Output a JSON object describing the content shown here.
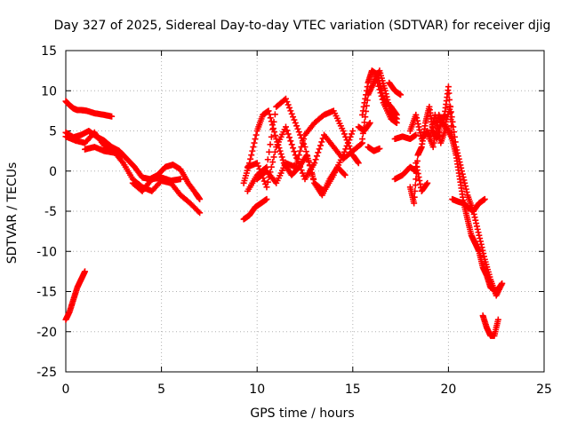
{
  "chart_data": {
    "type": "scatter",
    "title": "Day 327 of 2025, Sidereal Day-to-day VTEC variation (SDTVAR) for receiver djig",
    "xlabel": "GPS time / hours",
    "ylabel": "SDTVAR / TECUs",
    "xlim": [
      0,
      25
    ],
    "ylim": [
      -25,
      15
    ],
    "xticks": [
      0,
      5,
      10,
      15,
      20,
      25
    ],
    "yticks": [
      -25,
      -20,
      -15,
      -10,
      -5,
      0,
      5,
      10,
      15
    ],
    "grid": true,
    "marker": "+",
    "color": "#ff0000",
    "series": [
      {
        "x": [
          0.0,
          0.2,
          0.4,
          0.6,
          0.8,
          1.1,
          1.5,
          2.0,
          2.4
        ],
        "y": [
          8.7,
          8.2,
          7.8,
          7.6,
          7.6,
          7.5,
          7.2,
          7.0,
          6.8
        ]
      },
      {
        "x": [
          0.0,
          0.4,
          0.8,
          1.2,
          1.6,
          2.0,
          2.4,
          2.8,
          3.2,
          3.6,
          4.0,
          4.4,
          4.8,
          5.2,
          5.6,
          6.0,
          6.4,
          6.8,
          7.0
        ],
        "y": [
          4.8,
          4.2,
          4.5,
          5.0,
          4.3,
          3.8,
          3.0,
          2.5,
          1.5,
          0.5,
          -0.8,
          -1.0,
          -0.5,
          0.5,
          0.8,
          0.2,
          -1.5,
          -2.8,
          -3.5
        ]
      },
      {
        "x": [
          0.0,
          0.5,
          1.0,
          1.5,
          2.0,
          2.5,
          3.0,
          3.5,
          4.0,
          4.5,
          5.0,
          5.5,
          6.0,
          6.5,
          7.0
        ],
        "y": [
          4.3,
          3.8,
          3.5,
          4.8,
          3.2,
          2.5,
          1.0,
          -1.0,
          -2.0,
          -2.5,
          -1.2,
          -1.5,
          -3.0,
          -4.0,
          -5.2
        ]
      },
      {
        "x": [
          1.0,
          1.5,
          2.0,
          2.5,
          3.0
        ],
        "y": [
          2.7,
          3.0,
          2.5,
          2.3,
          2.0
        ]
      },
      {
        "x": [
          3.5,
          4.0,
          4.5,
          5.0,
          5.5,
          6.0
        ],
        "y": [
          -1.5,
          -2.5,
          -1.0,
          -0.8,
          -1.2,
          -1.0
        ]
      },
      {
        "x": [
          0.0,
          0.2,
          0.4,
          0.6,
          0.8,
          1.0
        ],
        "y": [
          -18.5,
          -17.5,
          -16.0,
          -14.5,
          -13.5,
          -12.5
        ]
      },
      {
        "x": [
          9.3,
          9.6,
          9.9,
          10.2,
          10.5
        ],
        "y": [
          -6.0,
          -5.5,
          -4.5,
          -4.0,
          -3.5
        ]
      },
      {
        "x": [
          9.3,
          9.6,
          10.0,
          10.3,
          10.6,
          11.0,
          11.4,
          11.8,
          12.2,
          12.6,
          13.0,
          13.4,
          13.8,
          14.2,
          14.6
        ],
        "y": [
          -1.5,
          1.0,
          5.0,
          7.0,
          7.5,
          4.0,
          1.0,
          -0.5,
          0.5,
          2.0,
          -1.5,
          -3.0,
          -1.0,
          0.5,
          -0.5
        ]
      },
      {
        "x": [
          9.5,
          10.0,
          10.5,
          11.0,
          11.5,
          12.0,
          12.5,
          13.0,
          13.5,
          14.0,
          14.5,
          15.0,
          15.5
        ],
        "y": [
          0.5,
          1.0,
          -2.0,
          3.0,
          5.5,
          2.0,
          -1.0,
          1.0,
          4.5,
          3.0,
          1.5,
          2.5,
          3.5
        ]
      },
      {
        "x": [
          9.5,
          10.0,
          10.5,
          11.0,
          11.5,
          12.0,
          12.5,
          13.0,
          13.5,
          14.0,
          14.5,
          15.0
        ],
        "y": [
          -2.5,
          -0.5,
          0.5,
          8.0,
          9.0,
          6.0,
          3.0,
          -1.5,
          -2.5,
          -0.5,
          2.0,
          5.0
        ]
      },
      {
        "x": [
          10.0,
          10.5,
          11.0,
          11.5,
          12.0,
          12.5,
          13.0,
          13.5,
          14.0,
          14.5,
          15.0,
          15.3
        ],
        "y": [
          -1.0,
          0.0,
          -1.5,
          1.0,
          0.5,
          4.5,
          6.0,
          7.0,
          7.5,
          5.0,
          2.0,
          1.0
        ]
      },
      {
        "x": [
          15.5,
          15.8,
          16.0,
          16.3,
          16.6,
          17.0,
          17.3
        ],
        "y": [
          7.0,
          11.0,
          12.5,
          12.0,
          9.0,
          8.0,
          7.0
        ]
      },
      {
        "x": [
          15.5,
          15.8,
          16.1,
          16.4,
          16.7,
          17.0,
          17.3
        ],
        "y": [
          4.0,
          9.5,
          11.0,
          12.5,
          10.0,
          7.0,
          6.5
        ]
      },
      {
        "x": [
          16.9,
          17.2,
          17.5
        ],
        "y": [
          11.0,
          10.0,
          9.5
        ]
      },
      {
        "x": [
          16.2,
          16.6,
          17.0,
          17.3
        ],
        "y": [
          11.8,
          8.5,
          6.5,
          6.0
        ]
      },
      {
        "x": [
          15.3,
          15.6,
          15.9
        ],
        "y": [
          5.5,
          5.0,
          6.0
        ]
      },
      {
        "x": [
          15.8,
          16.1,
          16.4
        ],
        "y": [
          3.0,
          2.5,
          2.8
        ]
      },
      {
        "x": [
          17.2,
          17.6,
          18.0,
          18.3
        ],
        "y": [
          -1.0,
          -0.5,
          0.5,
          0.0
        ]
      },
      {
        "x": [
          17.2,
          17.6,
          18.0,
          18.3
        ],
        "y": [
          4.0,
          4.3,
          4.0,
          4.5
        ]
      },
      {
        "x": [
          18.0,
          18.2,
          18.4,
          18.6,
          18.8,
          19.0,
          19.2,
          19.4,
          19.6,
          19.8,
          20.0,
          20.2,
          20.4,
          20.6,
          20.8,
          21.0,
          21.2,
          21.4,
          21.6,
          21.8,
          22.0,
          22.2,
          22.5,
          22.8
        ],
        "y": [
          -2.0,
          -4.0,
          2.0,
          3.0,
          6.0,
          8.0,
          5.0,
          4.0,
          6.0,
          7.0,
          10.5,
          4.0,
          2.0,
          -1.0,
          -4.0,
          -6.0,
          -8.0,
          -9.0,
          -10.0,
          -12.0,
          -13.0,
          -14.5,
          -15.0,
          -14.0
        ]
      },
      {
        "x": [
          18.0,
          18.3,
          18.6,
          18.9,
          19.2,
          19.5,
          19.8,
          20.1,
          20.4,
          20.7,
          21.0,
          21.3,
          21.6,
          21.9,
          22.2,
          22.5,
          22.8
        ],
        "y": [
          5.0,
          7.0,
          4.0,
          5.0,
          3.0,
          7.0,
          5.5,
          8.0,
          3.0,
          0.0,
          -3.0,
          -5.0,
          -8.0,
          -11.0,
          -13.5,
          -15.5,
          -14.0
        ]
      },
      {
        "x": [
          18.3,
          18.6,
          18.9
        ],
        "y": [
          1.0,
          -2.5,
          -1.5
        ]
      },
      {
        "x": [
          20.2,
          20.5,
          20.8,
          21.0,
          21.3,
          21.6,
          21.9
        ],
        "y": [
          -3.5,
          -3.8,
          -4.0,
          -4.5,
          -5.0,
          -4.0,
          -3.5
        ]
      },
      {
        "x": [
          21.8,
          22.0,
          22.2,
          22.4,
          22.6
        ],
        "y": [
          -18.0,
          -19.5,
          -20.5,
          -20.5,
          -18.5
        ]
      },
      {
        "x": [
          19.0,
          19.3,
          19.6,
          19.9,
          20.2
        ],
        "y": [
          4.0,
          7.0,
          3.5,
          5.5,
          4.0
        ]
      }
    ]
  }
}
